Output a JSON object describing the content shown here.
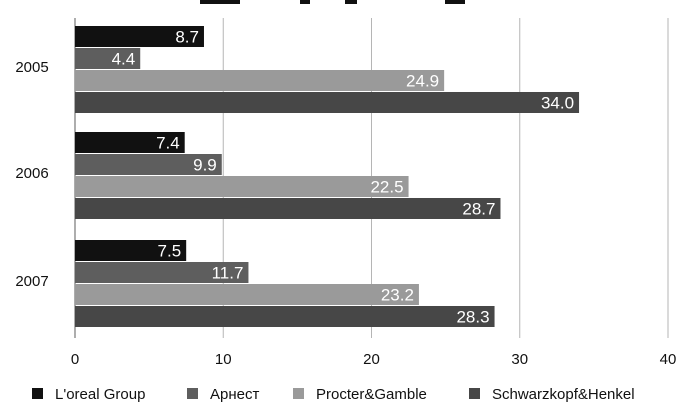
{
  "chart_data": {
    "type": "bar",
    "orientation": "horizontal",
    "title": "",
    "xlabel": "",
    "ylabel": "",
    "categories": [
      "2005",
      "2006",
      "2007"
    ],
    "xlim": [
      0,
      40
    ],
    "x_ticks": [
      "0",
      "10",
      "20",
      "30",
      "40"
    ],
    "grid": true,
    "legend_placement": "bottom",
    "series": [
      {
        "name": "L'oreal Group",
        "values": [
          8.7,
          7.4,
          7.5
        ],
        "labels": [
          "8.7",
          "7.4",
          "7.5"
        ],
        "color": "#111111"
      },
      {
        "name": "Арнест",
        "values": [
          4.4,
          9.9,
          11.7
        ],
        "labels": [
          "4.4",
          "9.9",
          "11.7"
        ],
        "color": "#5e5e5e"
      },
      {
        "name": "Procter&Gamble",
        "values": [
          24.9,
          22.5,
          23.2
        ],
        "labels": [
          "24.9",
          "22.5",
          "23.2"
        ],
        "color": "#9a9a9a"
      },
      {
        "name": "Schwarzkopf&Henkel",
        "values": [
          34.0,
          28.7,
          28.3
        ],
        "labels": [
          "34.0",
          "28.7",
          "28.3"
        ],
        "color": "#474747"
      }
    ]
  }
}
